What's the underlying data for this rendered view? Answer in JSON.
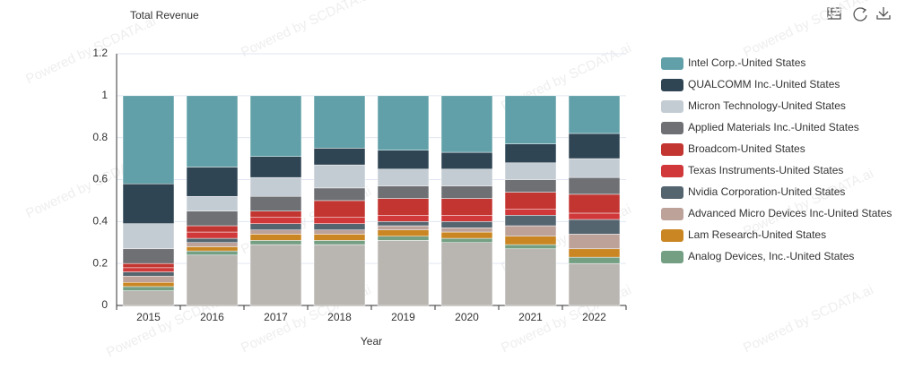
{
  "chart_data": {
    "type": "stacked_bar",
    "title": "Total Revenue",
    "x_label": "Year",
    "watermark": "Powered by SCDATA.ai",
    "categories": [
      "2015",
      "2016",
      "2017",
      "2018",
      "2019",
      "2020",
      "2021",
      "2022"
    ],
    "ylim": [
      0,
      1.2
    ],
    "yticks": [
      0,
      0.2,
      0.4,
      0.6,
      0.8,
      1,
      1.2
    ],
    "legend": "right",
    "series": [
      {
        "name": "Intel Corp.-United States",
        "color": "#61a0a8",
        "values": [
          0.42,
          0.34,
          0.29,
          0.25,
          0.26,
          0.27,
          0.23,
          0.18
        ]
      },
      {
        "name": "QUALCOMM Inc.-United States",
        "color": "#2f4554",
        "values": [
          0.19,
          0.14,
          0.1,
          0.08,
          0.09,
          0.08,
          0.09,
          0.12
        ]
      },
      {
        "name": "Micron Technology-United States",
        "color": "#c4ccd3",
        "values": [
          0.12,
          0.07,
          0.09,
          0.11,
          0.08,
          0.08,
          0.08,
          0.09
        ]
      },
      {
        "name": "Applied Materials Inc.-United States",
        "color": "#6e7074",
        "values": [
          0.07,
          0.07,
          0.07,
          0.06,
          0.06,
          0.06,
          0.06,
          0.08
        ]
      },
      {
        "name": "Broadcom-United States",
        "color": "#c23531",
        "values": [
          0.02,
          0.03,
          0.03,
          0.08,
          0.08,
          0.08,
          0.08,
          0.09
        ]
      },
      {
        "name": "Texas Instruments-United States",
        "color": "#d0383a",
        "values": [
          0.02,
          0.03,
          0.03,
          0.03,
          0.03,
          0.03,
          0.03,
          0.03
        ]
      },
      {
        "name": "Nvidia Corporation-United States",
        "color": "#546570",
        "values": [
          0.02,
          0.02,
          0.03,
          0.03,
          0.02,
          0.03,
          0.05,
          0.07
        ]
      },
      {
        "name": "Advanced Micro Devices Inc-United States",
        "color": "#bda29a",
        "values": [
          0.03,
          0.02,
          0.02,
          0.02,
          0.02,
          0.02,
          0.05,
          0.07
        ]
      },
      {
        "name": "Lam Research-United States",
        "color": "#ca8622",
        "values": [
          0.02,
          0.02,
          0.03,
          0.03,
          0.03,
          0.03,
          0.04,
          0.04
        ]
      },
      {
        "name": "Analog Devices, Inc.-United States",
        "color": "#749f83",
        "values": [
          0.02,
          0.02,
          0.02,
          0.02,
          0.02,
          0.02,
          0.02,
          0.03
        ]
      },
      {
        "color": "#b9b6b2",
        "values": [
          0.07,
          0.24,
          0.29,
          0.29,
          0.31,
          0.3,
          0.27,
          0.2
        ]
      }
    ]
  }
}
